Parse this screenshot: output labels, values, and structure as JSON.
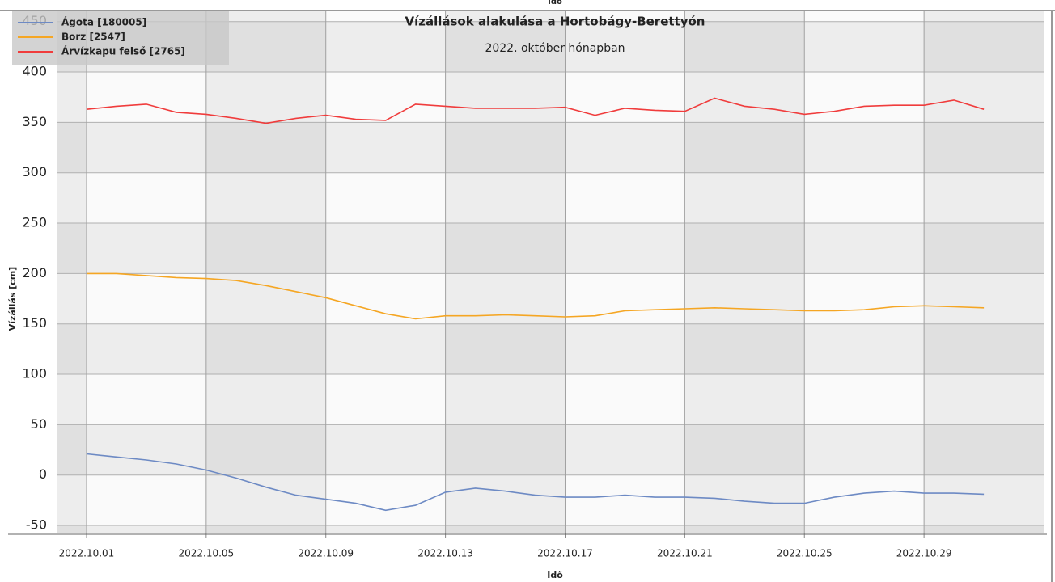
{
  "chart_data": {
    "type": "line",
    "title": "Vízállások alakulása a Hortobágy-Berettyón",
    "subtitle": "2022. október hónapban",
    "top_axis_label": "Idő",
    "x_label": "Idő",
    "y_label": "Vízállás [cm]",
    "x": [
      "2022.10.01",
      "2022.10.02",
      "2022.10.03",
      "2022.10.04",
      "2022.10.05",
      "2022.10.06",
      "2022.10.07",
      "2022.10.08",
      "2022.10.09",
      "2022.10.10",
      "2022.10.11",
      "2022.10.12",
      "2022.10.13",
      "2022.10.14",
      "2022.10.15",
      "2022.10.16",
      "2022.10.17",
      "2022.10.18",
      "2022.10.19",
      "2022.10.20",
      "2022.10.21",
      "2022.10.22",
      "2022.10.23",
      "2022.10.24",
      "2022.10.25",
      "2022.10.26",
      "2022.10.27",
      "2022.10.28",
      "2022.10.29",
      "2022.10.30",
      "2022.10.31"
    ],
    "series": [
      {
        "name": "Ágota [180005]",
        "color": "#6d8ac4",
        "values": [
          21,
          18,
          15,
          11,
          5,
          -3,
          -12,
          -20,
          -24,
          -28,
          -35,
          -30,
          -17,
          -13,
          -16,
          -20,
          -22,
          -22,
          -20,
          -22,
          -22,
          -23,
          -26,
          -28,
          -28,
          -22,
          -18,
          -16,
          -18,
          -18,
          -19
        ]
      },
      {
        "name": "Borz [2547]",
        "color": "#f5a623",
        "values": [
          200,
          200,
          198,
          196,
          195,
          193,
          188,
          182,
          176,
          168,
          160,
          155,
          158,
          158,
          159,
          158,
          157,
          158,
          163,
          164,
          165,
          166,
          165,
          164,
          163,
          163,
          164,
          167,
          168,
          167,
          166
        ]
      },
      {
        "name": "Árvízkapu felső [2765]",
        "color": "#f03c3c",
        "values": [
          363,
          366,
          368,
          360,
          358,
          354,
          349,
          354,
          357,
          353,
          352,
          368,
          366,
          364,
          364,
          364,
          365,
          357,
          364,
          362,
          361,
          374,
          366,
          363,
          358,
          361,
          366,
          367,
          367,
          372,
          363
        ]
      }
    ],
    "xlim": [
      "2022.09.30",
      "2022.11.02"
    ],
    "xticks": [
      "2022.10.01",
      "2022.10.05",
      "2022.10.09",
      "2022.10.13",
      "2022.10.17",
      "2022.10.21",
      "2022.10.25",
      "2022.10.29"
    ],
    "ylim": [
      -58,
      461
    ],
    "yticks": [
      -50,
      0,
      50,
      100,
      150,
      200,
      250,
      300,
      350,
      400,
      450
    ],
    "grid": true,
    "legend": "top-left"
  }
}
